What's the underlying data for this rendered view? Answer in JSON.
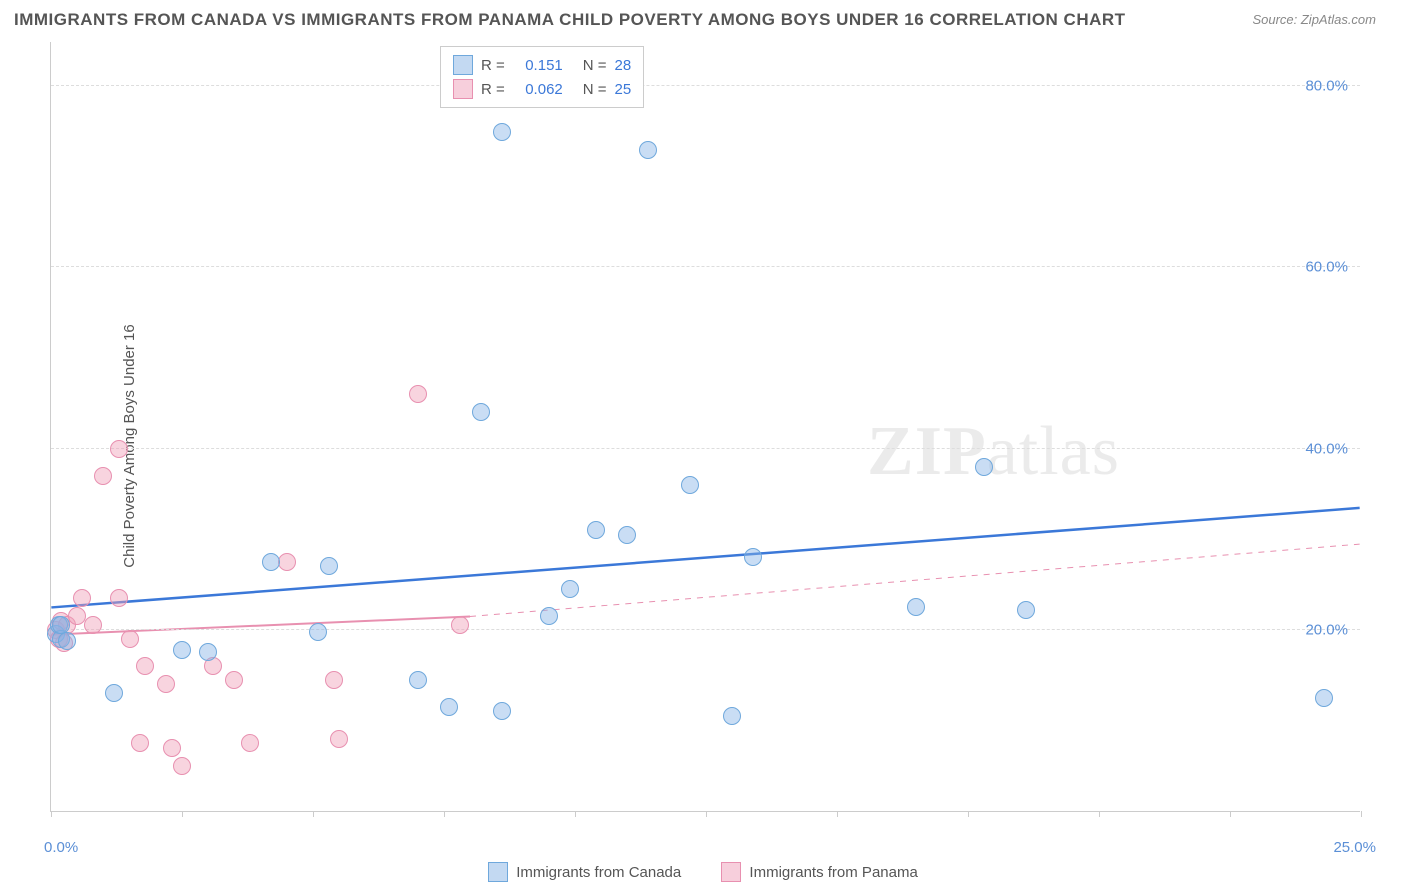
{
  "title": "IMMIGRANTS FROM CANADA VS IMMIGRANTS FROM PANAMA CHILD POVERTY AMONG BOYS UNDER 16 CORRELATION CHART",
  "source_label": "Source: ",
  "source_name": "ZipAtlas.com",
  "watermark_zip": "ZIP",
  "watermark_atlas": "atlas",
  "y_axis_label": "Child Poverty Among Boys Under 16",
  "chart": {
    "type": "scatter",
    "xlim": [
      0,
      25
    ],
    "ylim": [
      0,
      85
    ],
    "x_ticks": [
      0,
      2.5,
      5,
      7.5,
      10,
      12.5,
      15,
      17.5,
      20,
      22.5,
      25
    ],
    "x_tick_labels": {
      "0": "0.0%",
      "25": "25.0%"
    },
    "y_grid": [
      20,
      40,
      60,
      80
    ],
    "y_tick_labels": {
      "20": "20.0%",
      "40": "40.0%",
      "60": "60.0%",
      "80": "80.0%"
    },
    "background_color": "#ffffff",
    "grid_color": "#dddddd",
    "axis_color": "#cccccc",
    "marker_radius": 9,
    "series_a": {
      "label": "Immigrants from Canada",
      "fill_color": "#87b4e6",
      "stroke_color": "#6fa8dc",
      "fill_opacity": 0.45,
      "R": "0.151",
      "N": "28",
      "trend": {
        "y_at_x0": 22.5,
        "y_at_xmax": 33.5,
        "color": "#3b78d8",
        "width": 2.5,
        "dash": "none"
      },
      "points": [
        [
          0.1,
          19.5
        ],
        [
          0.15,
          20.5
        ],
        [
          0.2,
          19
        ],
        [
          0.2,
          20.5
        ],
        [
          0.3,
          18.8
        ],
        [
          1.2,
          13
        ],
        [
          3.0,
          17.5
        ],
        [
          2.5,
          17.8
        ],
        [
          5.1,
          19.8
        ],
        [
          5.3,
          27
        ],
        [
          4.2,
          27.5
        ],
        [
          7.0,
          14.5
        ],
        [
          7.6,
          11.5
        ],
        [
          8.6,
          11
        ],
        [
          8.2,
          44
        ],
        [
          9.5,
          21.5
        ],
        [
          9.9,
          24.5
        ],
        [
          10.4,
          31
        ],
        [
          11.0,
          30.5
        ],
        [
          11.4,
          73
        ],
        [
          12.2,
          36
        ],
        [
          13.0,
          10.5
        ],
        [
          13.4,
          28
        ],
        [
          8.6,
          75
        ],
        [
          16.5,
          22.5
        ],
        [
          17.8,
          38
        ],
        [
          18.6,
          22.2
        ],
        [
          24.3,
          12.5
        ]
      ]
    },
    "series_b": {
      "label": "Immigrants from Panama",
      "fill_color": "#f0a0b9",
      "stroke_color": "#e890b0",
      "fill_opacity": 0.45,
      "R": "0.062",
      "N": "25",
      "trend": {
        "solid": {
          "y_at_x0": 19.5,
          "y_at_x": 8.0,
          "y_at_xval": 21.5,
          "color": "#e890b0",
          "width": 2
        },
        "dashed": {
          "x_from": 8.0,
          "y_from": 21.5,
          "y_at_xmax": 29.5,
          "color": "#e890b0",
          "width": 1,
          "dash": "6 6"
        }
      },
      "points": [
        [
          0.1,
          20
        ],
        [
          0.15,
          19
        ],
        [
          0.2,
          21
        ],
        [
          0.25,
          18.5
        ],
        [
          0.3,
          20.5
        ],
        [
          0.5,
          21.5
        ],
        [
          0.6,
          23.5
        ],
        [
          0.8,
          20.5
        ],
        [
          1.0,
          37
        ],
        [
          1.3,
          40
        ],
        [
          1.3,
          23.5
        ],
        [
          1.5,
          19
        ],
        [
          1.7,
          7.5
        ],
        [
          1.8,
          16
        ],
        [
          2.2,
          14
        ],
        [
          2.3,
          7
        ],
        [
          2.5,
          5
        ],
        [
          3.1,
          16
        ],
        [
          3.5,
          14.5
        ],
        [
          3.8,
          7.5
        ],
        [
          4.5,
          27.5
        ],
        [
          5.4,
          14.5
        ],
        [
          5.5,
          8
        ],
        [
          7.0,
          46
        ],
        [
          7.8,
          20.5
        ]
      ]
    }
  },
  "legend_top": {
    "r_label": "R =",
    "n_label": "N ="
  },
  "legend_bottom": {
    "a": "Immigrants from Canada",
    "b": "Immigrants from Panama"
  }
}
